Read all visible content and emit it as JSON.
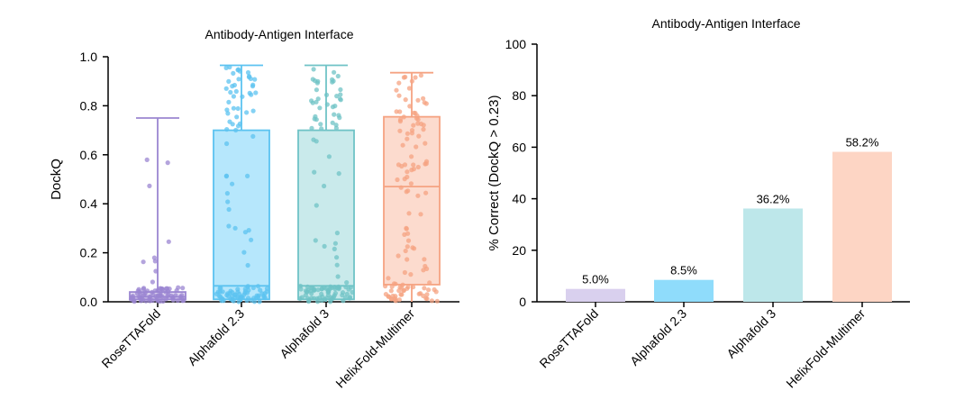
{
  "chart_data": [
    {
      "type": "box",
      "title": "Antibody-Antigen Interface",
      "xlabel": "",
      "ylabel": "DockQ",
      "ylim": [
        0,
        1.0
      ],
      "yticks": [
        "0.0",
        "0.2",
        "0.4",
        "0.6",
        "0.8",
        "1.0"
      ],
      "grid": false,
      "categories": [
        "RoseTTAFold",
        "Alphafold 2.3",
        "Alphafold 3",
        "HelixFold-Multimer"
      ],
      "series": [
        {
          "color": "#9b86d1",
          "fill": "#ddd3f0",
          "min": 0.0,
          "q1": 0.01,
          "median": 0.02,
          "q3": 0.04,
          "max": 0.75
        },
        {
          "color": "#5cc3f0",
          "fill": "#a9e3fb",
          "min": 0.0,
          "q1": 0.01,
          "median": 0.065,
          "q3": 0.7,
          "max": 0.965
        },
        {
          "color": "#6fc3c6",
          "fill": "#bfe6e8",
          "min": 0.0,
          "q1": 0.01,
          "median": 0.065,
          "q3": 0.7,
          "max": 0.965
        },
        {
          "color": "#f5a382",
          "fill": "#fcd5c5",
          "min": 0.0,
          "q1": 0.07,
          "median": 0.47,
          "q3": 0.755,
          "max": 0.935
        }
      ]
    },
    {
      "type": "bar",
      "title": "Antibody-Antigen Interface",
      "xlabel": "",
      "ylabel": "% Correct (DockQ > 0.23)",
      "ylim": [
        0,
        100
      ],
      "yticks": [
        "0",
        "20",
        "40",
        "60",
        "80",
        "100"
      ],
      "grid": false,
      "categories": [
        "RoseTTAFold",
        "Alphafold 2.3",
        "Alphafold 3",
        "HelixFold-Multimer"
      ],
      "values": [
        5.0,
        8.5,
        36.2,
        58.2
      ],
      "value_labels": [
        "5.0%",
        "8.5%",
        "36.2%",
        "58.2%"
      ],
      "colors": [
        "#d9d0ee",
        "#8fdcfb",
        "#bde7ea",
        "#fdd5c4"
      ]
    }
  ]
}
